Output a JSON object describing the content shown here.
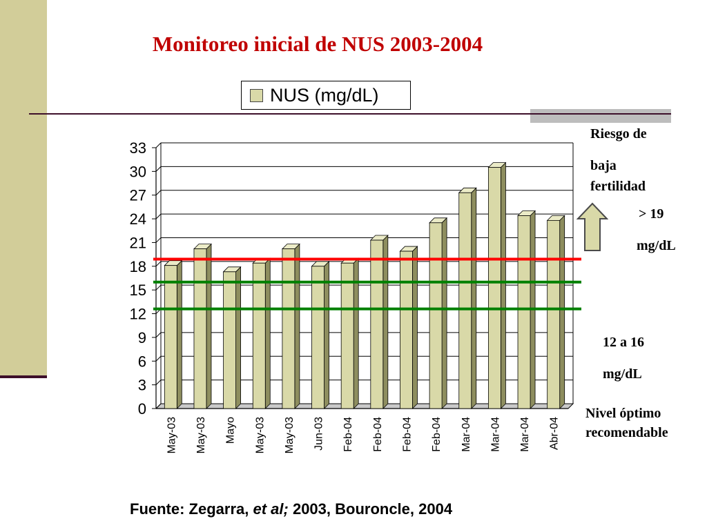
{
  "chart_data": {
    "type": "bar",
    "title": "Monitoreo inicial de NUS 2003-2004",
    "categories": [
      "May-03",
      "May-03",
      "Mayo",
      "May-03",
      "May-03",
      "Jun-03",
      "Feb-04",
      "Feb-04",
      "Feb-04",
      "Feb-04",
      "Mar-04",
      "Mar-04",
      "Mar-04",
      "Abr-04"
    ],
    "series": [
      {
        "name": "NUS (mg/dL)",
        "values": [
          18.1,
          20.2,
          17.3,
          18.4,
          20.2,
          18.0,
          18.4,
          21.3,
          19.9,
          23.5,
          27.3,
          30.5,
          24.4,
          23.8
        ],
        "color": "#d9d9a8"
      }
    ],
    "y_ticks": [
      "0",
      "3",
      "6",
      "9",
      "12",
      "15",
      "18",
      "21",
      "24",
      "27",
      "30",
      "33"
    ],
    "ylim": [
      0,
      33
    ],
    "reference_lines": [
      {
        "value": 18.9,
        "color": "#ff0000"
      },
      {
        "value": 16.0,
        "color": "#008000"
      },
      {
        "value": 12.6,
        "color": "#008000"
      }
    ],
    "grid": true,
    "legend": "top"
  },
  "annotations": {
    "risk_title": [
      "Riesgo de",
      "baja",
      "fertilidad"
    ],
    "risk_value": [
      "> 19",
      "mg/dL"
    ],
    "optimal_value": [
      "12 a 16",
      "mg/dL"
    ],
    "optimal_title": [
      "Nivel óptimo",
      "recomendable"
    ]
  },
  "source": {
    "prefix": "Fuente: Zegarra, ",
    "italic": "et al;",
    "suffix": " 2003, Bouroncle, 2004"
  },
  "colors": {
    "accent": "#c00000",
    "strip": "#d2cd99",
    "rule": "#3d0f2a",
    "arrow_fill": "#d9d9a8"
  }
}
